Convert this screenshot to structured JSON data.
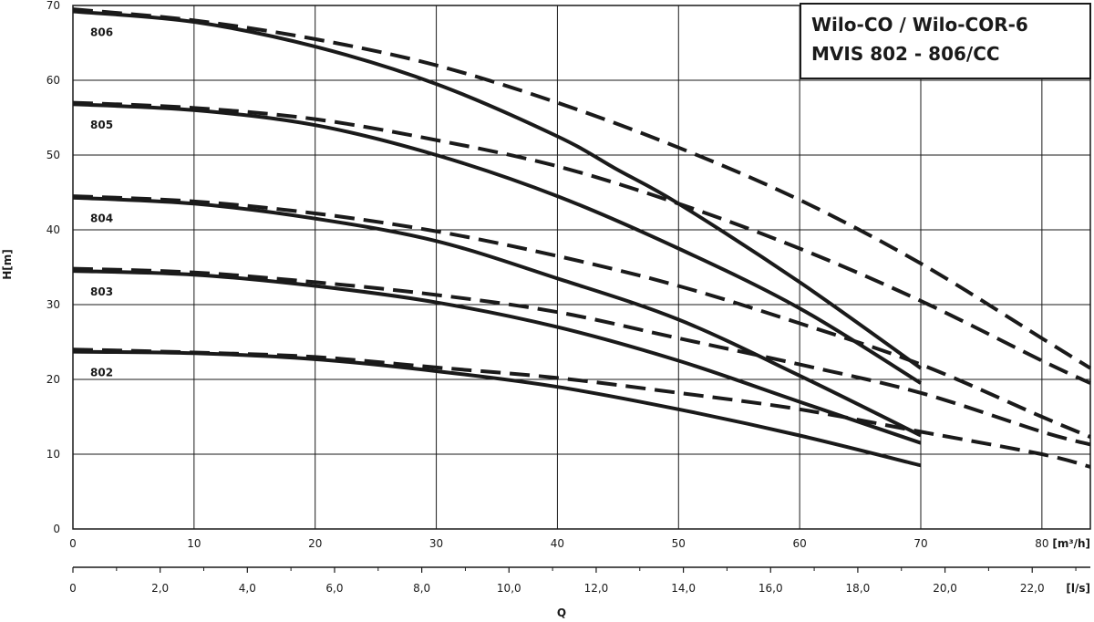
{
  "chart_data": {
    "type": "line",
    "title_lines": [
      "Wilo-CO / Wilo-COR-6",
      "MVIS 802 - 806/CC"
    ],
    "xlabel": "Q",
    "ylabel": "H[m]",
    "xlim": [
      0,
      84
    ],
    "ylim": [
      0,
      70
    ],
    "grid": true,
    "x_unit": "[m³/h]",
    "x2_unit": "[l/s]",
    "x_ticks": [
      0,
      10,
      20,
      30,
      40,
      50,
      60,
      70,
      80
    ],
    "y_ticks": [
      0,
      10,
      20,
      30,
      40,
      50,
      60,
      70
    ],
    "x2_ticks": [
      "0",
      "2,0",
      "4,0",
      "6,0",
      "8,0",
      "10,0",
      "12,0",
      "14,0",
      "16,0",
      "18,0",
      "20,0",
      "22,0"
    ],
    "x2_tick_values": [
      0,
      2,
      4,
      6,
      8,
      10,
      12,
      14,
      16,
      18,
      20,
      22
    ],
    "series": [
      {
        "name": "806",
        "style": "solid",
        "x": [
          0,
          10,
          20,
          30,
          40,
          45,
          50,
          60,
          70
        ],
        "y": [
          69.2,
          67.8,
          64.5,
          59.5,
          52.5,
          48,
          43.5,
          33,
          21.5
        ]
      },
      {
        "name": "806",
        "style": "dashed",
        "x": [
          0,
          10,
          20,
          30,
          40,
          50,
          60,
          70,
          80,
          84
        ],
        "y": [
          69.5,
          68,
          65.5,
          62,
          57,
          51,
          44,
          35.5,
          25.5,
          21.5
        ]
      },
      {
        "name": "805",
        "style": "solid",
        "x": [
          0,
          10,
          20,
          30,
          40,
          50,
          60,
          70
        ],
        "y": [
          56.8,
          56,
          54,
          50,
          44.5,
          37.5,
          29.5,
          19.5
        ]
      },
      {
        "name": "805",
        "style": "dashed",
        "x": [
          0,
          10,
          20,
          30,
          40,
          50,
          60,
          70,
          80,
          84
        ],
        "y": [
          57,
          56.3,
          54.8,
          52,
          48.5,
          43.5,
          37.5,
          30.5,
          22.5,
          19.5
        ]
      },
      {
        "name": "804",
        "style": "solid",
        "x": [
          0,
          10,
          20,
          30,
          40,
          50,
          60,
          70
        ],
        "y": [
          44.3,
          43.5,
          41.5,
          38.5,
          33.5,
          28,
          20.5,
          12.5
        ]
      },
      {
        "name": "804",
        "style": "dashed",
        "x": [
          0,
          10,
          20,
          30,
          40,
          50,
          60,
          70,
          80,
          84
        ],
        "y": [
          44.5,
          43.8,
          42.2,
          39.8,
          36.5,
          32.5,
          27.5,
          22,
          15,
          12.3
        ]
      },
      {
        "name": "803",
        "style": "solid",
        "x": [
          0,
          10,
          20,
          30,
          40,
          50,
          60,
          70
        ],
        "y": [
          34.5,
          34,
          32.5,
          30.3,
          27,
          22.5,
          17,
          11.5
        ]
      },
      {
        "name": "803",
        "style": "dashed",
        "x": [
          0,
          10,
          20,
          30,
          40,
          50,
          60,
          70,
          80,
          84
        ],
        "y": [
          34.8,
          34.3,
          33,
          31.3,
          29,
          25.5,
          22,
          18.2,
          13,
          11.3
        ]
      },
      {
        "name": "802",
        "style": "solid",
        "x": [
          0,
          10,
          20,
          30,
          40,
          50,
          60,
          70
        ],
        "y": [
          23.7,
          23.5,
          22.7,
          21.1,
          19,
          16,
          12.5,
          8.5
        ]
      },
      {
        "name": "802",
        "style": "dashed",
        "x": [
          0,
          10,
          20,
          30,
          40,
          50,
          60,
          70,
          80,
          84
        ],
        "y": [
          24,
          23.6,
          23,
          21.6,
          20.2,
          18.2,
          16,
          13,
          10,
          8.3
        ]
      }
    ]
  }
}
